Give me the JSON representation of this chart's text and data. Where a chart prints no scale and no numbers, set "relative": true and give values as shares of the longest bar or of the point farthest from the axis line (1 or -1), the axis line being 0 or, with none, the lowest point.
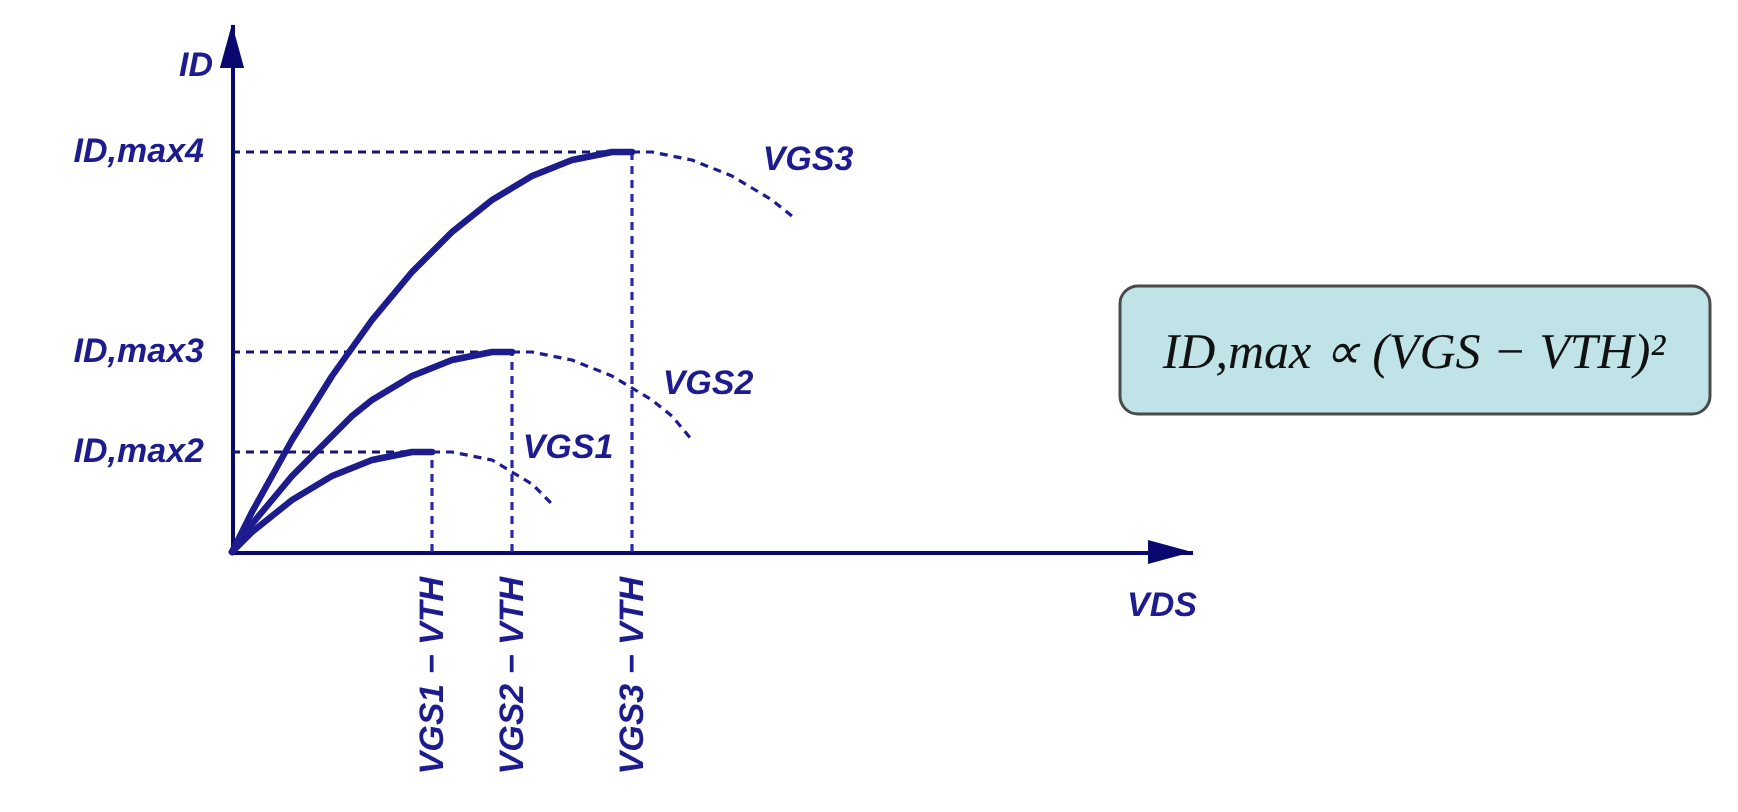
{
  "chart_data": {
    "type": "line",
    "relative": true,
    "xlabel": "VDS",
    "ylabel": "ID",
    "categories": [
      null,
      null,
      null,
      null,
      null,
      null,
      null,
      null,
      null,
      null,
      "VGS1 − VTH",
      null,
      null,
      null,
      "VGS2 − VTH",
      null,
      null,
      null,
      null,
      null,
      "VGS3 − VTH",
      null,
      null,
      null,
      null,
      null,
      null,
      null,
      null,
      null,
      null,
      null,
      null,
      null,
      null,
      null,
      null,
      null,
      null,
      null,
      null,
      null,
      null,
      null,
      null,
      null,
      null,
      null,
      null
    ],
    "series": [
      {
        "color": "#1c1c8f",
        "line_style": "solid",
        "values": [
          0,
          0.05,
          0.09,
          0.13,
          0.16,
          0.19,
          0.21,
          0.23,
          0.24,
          0.25,
          0.25,
          null,
          null,
          null,
          null,
          null,
          null,
          null,
          null,
          null,
          null,
          null,
          null,
          null,
          null,
          null,
          null,
          null,
          null,
          null,
          null,
          null,
          null,
          null,
          null,
          null,
          null,
          null,
          null,
          null,
          null,
          null,
          null,
          null,
          null,
          null,
          null,
          null,
          null
        ]
      },
      {
        "name": "VGS1",
        "color": "#1c1c8f",
        "line_style": "dashed",
        "values": [
          null,
          null,
          null,
          null,
          null,
          null,
          null,
          null,
          null,
          null,
          0.25,
          0.25,
          0.24,
          0.23,
          0.2,
          0.17,
          0.12,
          null,
          null,
          null,
          null,
          null,
          null,
          null,
          null,
          null,
          null,
          null,
          null,
          null,
          null,
          null,
          null,
          null,
          null,
          null,
          null,
          null,
          null,
          null,
          null,
          null,
          null,
          null,
          null,
          null,
          null,
          null,
          null
        ]
      },
      {
        "color": "#1c1c8f",
        "line_style": "solid",
        "values": [
          0,
          0.07,
          0.13,
          0.19,
          0.24,
          0.29,
          0.34,
          0.38,
          0.41,
          0.44,
          0.46,
          0.48,
          0.49,
          0.5,
          0.5,
          null,
          null,
          null,
          null,
          null,
          null,
          null,
          null,
          null,
          null,
          null,
          null,
          null,
          null,
          null,
          null,
          null,
          null,
          null,
          null,
          null,
          null,
          null,
          null,
          null,
          null,
          null,
          null,
          null,
          null,
          null,
          null,
          null,
          null
        ]
      },
      {
        "name": "VGS2",
        "color": "#1c1c8f",
        "line_style": "dashed",
        "values": [
          null,
          null,
          null,
          null,
          null,
          null,
          null,
          null,
          null,
          null,
          null,
          null,
          null,
          null,
          0.5,
          0.5,
          0.49,
          0.48,
          0.46,
          0.44,
          0.41,
          0.38,
          0.34,
          0.28,
          null,
          null,
          null,
          null,
          null,
          null,
          null,
          null,
          null,
          null,
          null,
          null,
          null,
          null,
          null,
          null,
          null,
          null,
          null,
          null,
          null,
          null,
          null,
          null,
          null
        ]
      },
      {
        "color": "#1c1c8f",
        "line_style": "solid",
        "values": [
          0,
          0.1,
          0.19,
          0.28,
          0.36,
          0.44,
          0.51,
          0.58,
          0.64,
          0.7,
          0.75,
          0.8,
          0.84,
          0.88,
          0.91,
          0.94,
          0.96,
          0.98,
          0.99,
          1.0,
          1.0,
          null,
          null,
          null,
          null,
          null,
          null,
          null,
          null,
          null,
          null,
          null,
          null,
          null,
          null,
          null,
          null,
          null,
          null,
          null,
          null,
          null,
          null,
          null,
          null,
          null,
          null,
          null,
          null
        ]
      },
      {
        "name": "VGS3",
        "color": "#1c1c8f",
        "line_style": "dashed",
        "values": [
          null,
          null,
          null,
          null,
          null,
          null,
          null,
          null,
          null,
          null,
          null,
          null,
          null,
          null,
          null,
          null,
          null,
          null,
          null,
          null,
          1.0,
          1.0,
          0.99,
          0.98,
          0.96,
          0.94,
          0.91,
          0.88,
          0.84,
          null,
          null,
          null,
          null,
          null,
          null,
          null,
          null,
          null,
          null,
          null,
          null,
          null,
          null,
          null,
          null,
          null,
          null,
          null,
          null
        ]
      }
    ],
    "ref_lines": [
      {
        "axis": "y",
        "value": 1.0,
        "label": "ID,max4",
        "color": "#15156b",
        "line_style": "dashed"
      },
      {
        "axis": "y",
        "value": 0.5,
        "label": "ID,max3",
        "color": "#15156b",
        "line_style": "dashed"
      },
      {
        "axis": "y",
        "value": 0.25,
        "label": "ID,max2",
        "color": "#15156b",
        "line_style": "dashed"
      },
      {
        "axis": "x",
        "value": "VGS1 − VTH",
        "color": "#2a2aa8",
        "line_style": "dashed"
      },
      {
        "axis": "x",
        "value": "VGS2 − VTH",
        "color": "#2a2aa8",
        "line_style": "dashed"
      },
      {
        "axis": "x",
        "value": "VGS3 − VTH",
        "color": "#2a2aa8",
        "line_style": "dashed"
      }
    ],
    "annotations": [
      "ID,max ∝ (VGS − VTH)²"
    ]
  }
}
